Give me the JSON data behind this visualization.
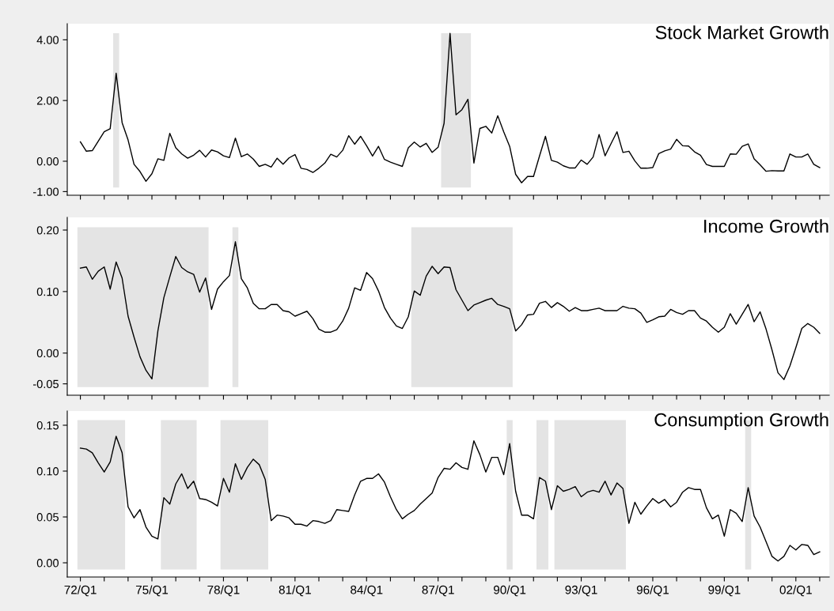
{
  "chart_data": [
    {
      "type": "line",
      "title": "Stock Market Growth",
      "tick_labels": "y",
      "categories": [
        null,
        null,
        null,
        null,
        null,
        null,
        null,
        null,
        null,
        null,
        null,
        null,
        null,
        null,
        null,
        null,
        null,
        null,
        null,
        null,
        null,
        null,
        null,
        null,
        null,
        null,
        null,
        null,
        null,
        null,
        null,
        null,
        null,
        null,
        null,
        null,
        null,
        null,
        null,
        null,
        null,
        null,
        null,
        null,
        null,
        null,
        null,
        null,
        null,
        null,
        null,
        null,
        null,
        null,
        null,
        null,
        null,
        null,
        null,
        null,
        null,
        null,
        null,
        null,
        null,
        null,
        null,
        null,
        null,
        null,
        null,
        null,
        null,
        null,
        null,
        null,
        null,
        null,
        null,
        null,
        null,
        null,
        null,
        null,
        null,
        null,
        null,
        null,
        null,
        null,
        null,
        null,
        null,
        null,
        null,
        null,
        null,
        null,
        null,
        null,
        null,
        null,
        null,
        null,
        null,
        null,
        null,
        null,
        null,
        null,
        null,
        null,
        null,
        null,
        null,
        null,
        null,
        null,
        null,
        null,
        null,
        null,
        null,
        null,
        null
      ],
      "series": [
        {
          "color": "#000000",
          "values": [
            0.64,
            0.33,
            0.35,
            0.66,
            0.97,
            1.07,
            2.9,
            1.27,
            0.7,
            -0.1,
            -0.34,
            -0.66,
            -0.41,
            0.08,
            0.03,
            0.92,
            0.44,
            0.24,
            0.1,
            0.2,
            0.36,
            0.14,
            0.37,
            0.31,
            0.18,
            0.12,
            0.76,
            0.15,
            0.24,
            0.07,
            -0.17,
            -0.1,
            -0.19,
            0.1,
            -0.1,
            0.11,
            0.22,
            -0.23,
            -0.27,
            -0.37,
            -0.23,
            -0.06,
            0.23,
            0.14,
            0.36,
            0.84,
            0.56,
            0.82,
            0.51,
            0.17,
            0.49,
            0.06,
            -0.03,
            -0.1,
            -0.17,
            0.44,
            0.63,
            0.47,
            0.59,
            0.29,
            0.46,
            1.25,
            4.21,
            1.53,
            1.7,
            2.04,
            -0.06,
            1.08,
            1.15,
            0.93,
            1.5,
            0.97,
            0.49,
            -0.43,
            -0.71,
            -0.5,
            -0.5,
            0.17,
            0.82,
            0.03,
            -0.03,
            -0.15,
            -0.22,
            -0.22,
            0.04,
            -0.1,
            0.14,
            0.88,
            0.18,
            0.58,
            0.97,
            0.29,
            0.33,
            0.01,
            -0.23,
            -0.23,
            -0.21,
            0.25,
            0.34,
            0.4,
            0.72,
            0.51,
            0.5,
            0.31,
            0.2,
            -0.11,
            -0.17,
            -0.17,
            -0.17,
            0.24,
            0.23,
            0.49,
            0.57,
            0.08,
            -0.12,
            -0.33,
            -0.31,
            -0.32,
            -0.32,
            0.24,
            0.14,
            0.14,
            0.24,
            -0.1,
            -0.21
          ]
        }
      ],
      "ylim": [
        -1.12,
        4.53
      ],
      "yticks": [
        {
          "value": 4,
          "label": "4.00"
        },
        {
          "value": 2,
          "label": "2.00"
        },
        {
          "value": 0,
          "label": "0.00"
        },
        {
          "value": -1,
          "label": "-1.00"
        }
      ]
    },
    {
      "type": "line",
      "title": "Income Growth",
      "tick_labels": "y",
      "categories": [
        null,
        null,
        null,
        null,
        null,
        null,
        null,
        null,
        null,
        null,
        null,
        null,
        null,
        null,
        null,
        null,
        null,
        null,
        null,
        null,
        null,
        null,
        null,
        null,
        null,
        null,
        null,
        null,
        null,
        null,
        null,
        null,
        null,
        null,
        null,
        null,
        null,
        null,
        null,
        null,
        null,
        null,
        null,
        null,
        null,
        null,
        null,
        null,
        null,
        null,
        null,
        null,
        null,
        null,
        null,
        null,
        null,
        null,
        null,
        null,
        null,
        null,
        null,
        null,
        null,
        null,
        null,
        null,
        null,
        null,
        null,
        null,
        null,
        null,
        null,
        null,
        null,
        null,
        null,
        null,
        null,
        null,
        null,
        null,
        null,
        null,
        null,
        null,
        null,
        null,
        null,
        null,
        null,
        null,
        null,
        null,
        null,
        null,
        null,
        null,
        null,
        null,
        null,
        null,
        null,
        null,
        null,
        null,
        null,
        null,
        null,
        null,
        null,
        null,
        null,
        null,
        null,
        null,
        null,
        null,
        null,
        null,
        null,
        null,
        null
      ],
      "series": [
        {
          "color": "#000000",
          "values": [
            0.138,
            0.14,
            0.12,
            0.133,
            0.14,
            0.104,
            0.148,
            0.122,
            0.06,
            0.026,
            -0.006,
            -0.028,
            -0.042,
            0.036,
            0.09,
            0.124,
            0.157,
            0.139,
            0.132,
            0.128,
            0.099,
            0.122,
            0.071,
            0.104,
            0.116,
            0.126,
            0.181,
            0.121,
            0.106,
            0.081,
            0.072,
            0.072,
            0.079,
            0.079,
            0.069,
            0.067,
            0.06,
            0.064,
            0.068,
            0.056,
            0.039,
            0.034,
            0.034,
            0.038,
            0.052,
            0.073,
            0.106,
            0.102,
            0.131,
            0.121,
            0.101,
            0.074,
            0.057,
            0.044,
            0.04,
            0.059,
            0.101,
            0.094,
            0.125,
            0.141,
            0.129,
            0.14,
            0.139,
            0.103,
            0.086,
            0.069,
            0.078,
            0.082,
            0.086,
            0.089,
            0.079,
            0.076,
            0.072,
            0.036,
            0.046,
            0.062,
            0.063,
            0.081,
            0.084,
            0.074,
            0.082,
            0.076,
            0.068,
            0.074,
            0.069,
            0.069,
            0.071,
            0.073,
            0.069,
            0.069,
            0.069,
            0.076,
            0.073,
            0.072,
            0.065,
            0.05,
            0.054,
            0.059,
            0.06,
            0.071,
            0.066,
            0.063,
            0.069,
            0.069,
            0.057,
            0.052,
            0.042,
            0.034,
            0.042,
            0.064,
            0.047,
            0.063,
            0.079,
            0.051,
            0.067,
            0.039,
            0.005,
            -0.032,
            -0.043,
            -0.021,
            0.009,
            0.04,
            0.048,
            0.042,
            0.032
          ]
        }
      ],
      "ylim": [
        -0.0685,
        0.2206
      ],
      "yticks": [
        {
          "value": 0.2,
          "label": "0.20"
        },
        {
          "value": 0.1,
          "label": "0.10"
        },
        {
          "value": 0,
          "label": "0.00"
        },
        {
          "value": -0.05,
          "label": "-0.05"
        }
      ]
    },
    {
      "type": "line",
      "title": "Consumption Growth",
      "categories": [
        "72/Q1",
        null,
        null,
        null,
        null,
        null,
        null,
        null,
        null,
        null,
        null,
        null,
        "75/Q1",
        null,
        null,
        null,
        null,
        null,
        null,
        null,
        null,
        null,
        null,
        null,
        "78/Q1",
        null,
        null,
        null,
        null,
        null,
        null,
        null,
        null,
        null,
        null,
        null,
        "81/Q1",
        null,
        null,
        null,
        null,
        null,
        null,
        null,
        null,
        null,
        null,
        null,
        "84/Q1",
        null,
        null,
        null,
        null,
        null,
        null,
        null,
        null,
        null,
        null,
        null,
        "87/Q1",
        null,
        null,
        null,
        null,
        null,
        null,
        null,
        null,
        null,
        null,
        null,
        "90/Q1",
        null,
        null,
        null,
        null,
        null,
        null,
        null,
        null,
        null,
        null,
        null,
        "93/Q1",
        null,
        null,
        null,
        null,
        null,
        null,
        null,
        null,
        null,
        null,
        null,
        "96/Q1",
        null,
        null,
        null,
        null,
        null,
        null,
        null,
        null,
        null,
        null,
        null,
        "99/Q1",
        null,
        null,
        null,
        null,
        null,
        null,
        null,
        null,
        null,
        null,
        null,
        "02/Q1",
        null,
        null,
        null,
        null
      ],
      "series": [
        {
          "color": "#000000",
          "values": [
            0.125,
            0.124,
            0.12,
            0.109,
            0.099,
            0.11,
            0.138,
            0.12,
            0.061,
            0.049,
            0.058,
            0.039,
            0.029,
            0.026,
            0.071,
            0.064,
            0.086,
            0.097,
            0.081,
            0.089,
            0.07,
            0.069,
            0.066,
            0.062,
            0.092,
            0.077,
            0.108,
            0.091,
            0.104,
            0.113,
            0.107,
            0.091,
            0.046,
            0.052,
            0.051,
            0.049,
            0.042,
            0.042,
            0.04,
            0.046,
            0.045,
            0.043,
            0.046,
            0.058,
            0.057,
            0.056,
            0.074,
            0.089,
            0.092,
            0.092,
            0.097,
            0.088,
            0.072,
            0.058,
            0.048,
            0.053,
            0.057,
            0.064,
            0.07,
            0.076,
            0.093,
            0.103,
            0.102,
            0.109,
            0.104,
            0.102,
            0.133,
            0.118,
            0.099,
            0.115,
            0.115,
            0.096,
            0.13,
            0.078,
            0.052,
            0.052,
            0.048,
            0.093,
            0.089,
            0.058,
            0.084,
            0.078,
            0.08,
            0.083,
            0.072,
            0.077,
            0.079,
            0.077,
            0.089,
            0.074,
            0.087,
            0.081,
            0.043,
            0.066,
            0.053,
            0.062,
            0.07,
            0.065,
            0.069,
            0.061,
            0.066,
            0.077,
            0.082,
            0.08,
            0.08,
            0.06,
            0.048,
            0.052,
            0.029,
            0.058,
            0.054,
            0.045,
            0.082,
            0.051,
            0.039,
            0.023,
            0.007,
            0.002,
            0.007,
            0.019,
            0.014,
            0.02,
            0.019,
            0.009,
            0.012
          ]
        }
      ],
      "ylim": [
        -0.0155,
        0.1655
      ],
      "yticks": [
        {
          "value": 0.15,
          "label": "0.15"
        },
        {
          "value": 0.1,
          "label": "0.10"
        },
        {
          "value": 0.05,
          "label": "0.05"
        },
        {
          "value": 0,
          "label": "0.00"
        }
      ]
    }
  ]
}
